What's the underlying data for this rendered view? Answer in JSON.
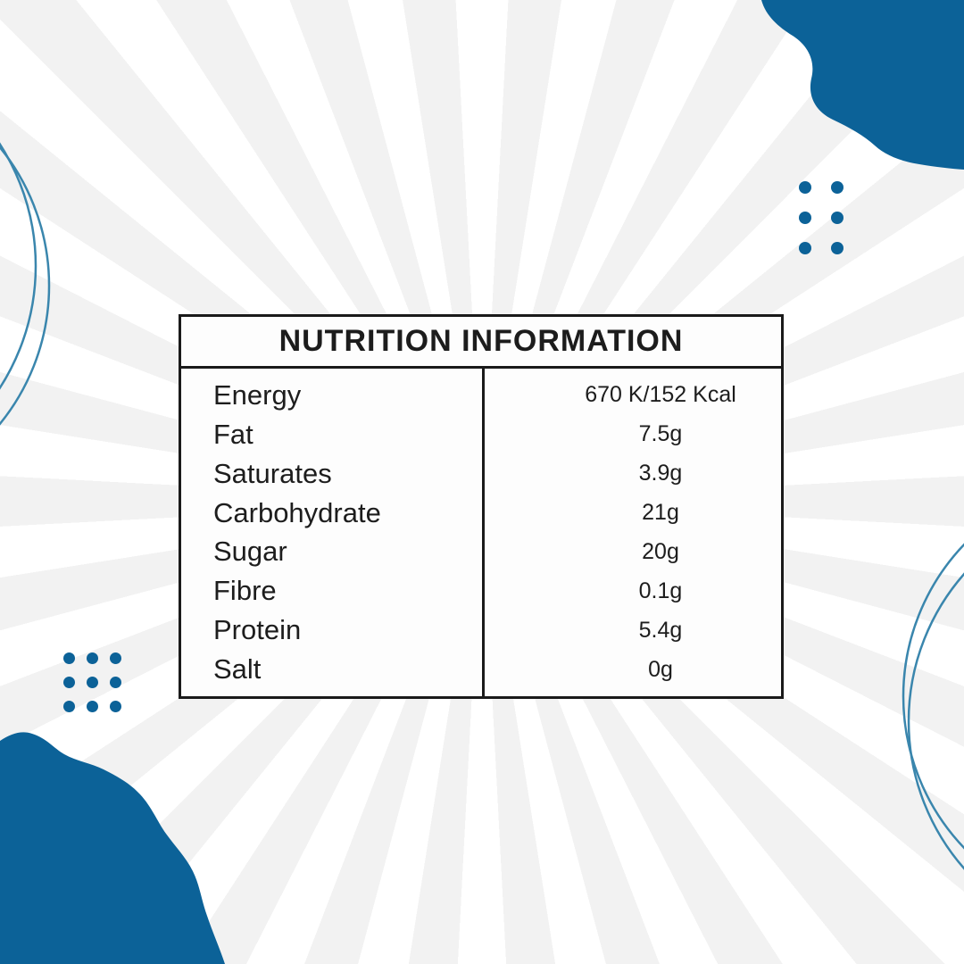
{
  "palette": {
    "blob_blue": "#0c6298",
    "circle_stroke_blue": "#3a86ad",
    "ray_gray": "#f2f2f2",
    "background_white": "#ffffff",
    "border_black": "#1a1a1a",
    "text_black": "#1c1c1c"
  },
  "decorations": {
    "top_right_blob": "organic-wave-blob",
    "bottom_left_blob": "organic-wave-blob",
    "top_right_dots": {
      "count": 6,
      "cols": 2,
      "rows": 3
    },
    "bottom_left_dots": {
      "count": 9,
      "cols": 3,
      "rows": 3
    },
    "left_circles": 2,
    "bottom_right_circles": 2
  },
  "nutrition_table": {
    "title": "NUTRITION INFORMATION",
    "rows": [
      {
        "label": "Energy",
        "value": "670 K/152 Kcal"
      },
      {
        "label": "Fat",
        "value": "7.5g"
      },
      {
        "label": "Saturates",
        "value": "3.9g"
      },
      {
        "label": "Carbohydrate",
        "value": "21g"
      },
      {
        "label": "Sugar",
        "value": "20g"
      },
      {
        "label": "Fibre",
        "value": "0.1g"
      },
      {
        "label": "Protein",
        "value": "5.4g"
      },
      {
        "label": "Salt",
        "value": "0g"
      }
    ]
  }
}
